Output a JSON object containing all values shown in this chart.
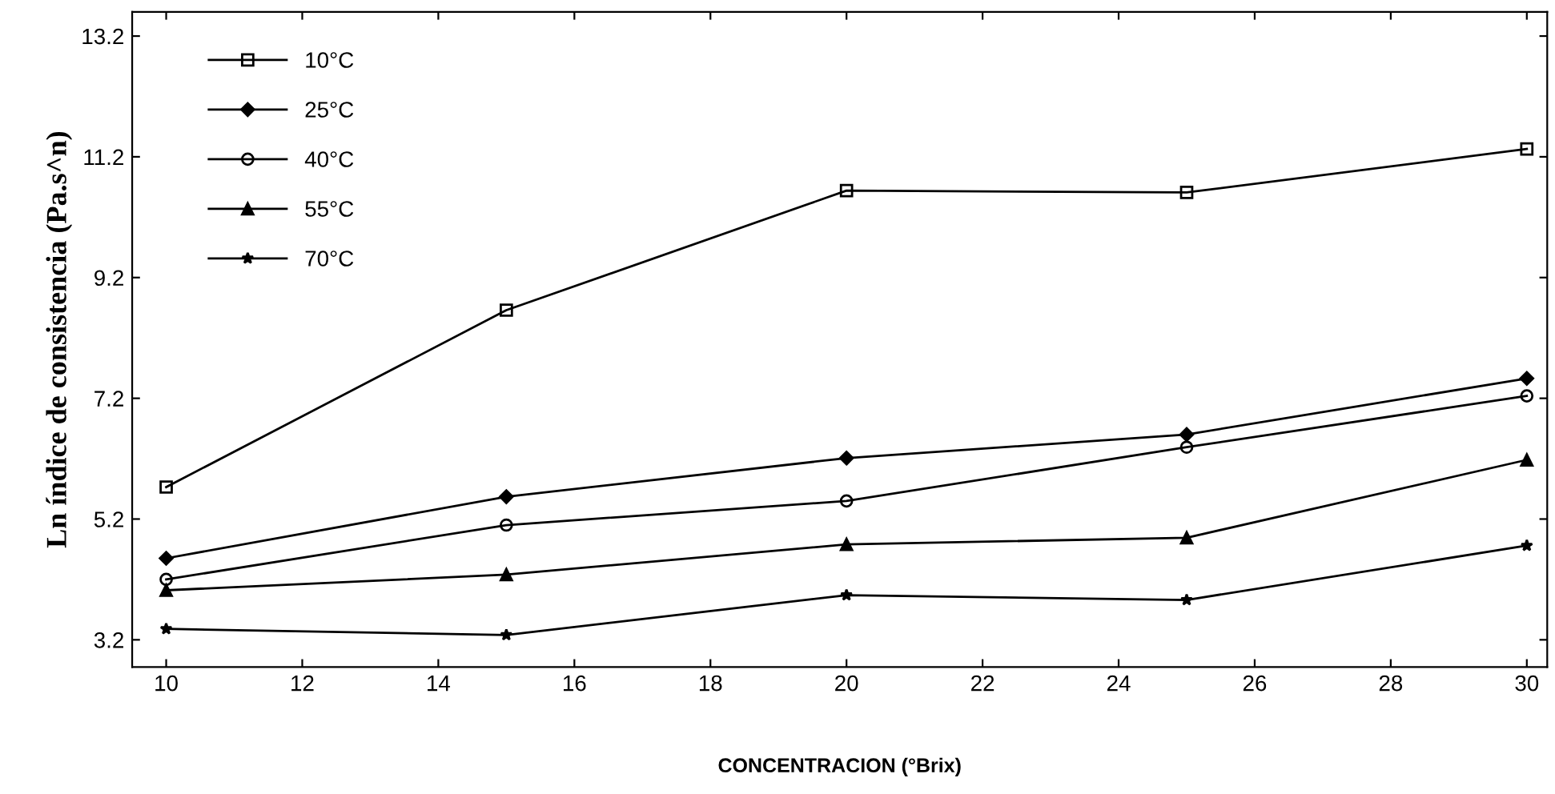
{
  "chart_data": {
    "type": "line",
    "xlabel": "CONCENTRACION (°Brix)",
    "ylabel": "Ln índice de consistencia (Pa.s^n)",
    "x": [
      10,
      15,
      20,
      25,
      30
    ],
    "series": [
      {
        "name": "10°C",
        "color": "#000000",
        "marker": "square",
        "values": [
          5.73,
          8.66,
          10.64,
          10.61,
          11.33
        ]
      },
      {
        "name": "25°C",
        "color": "#000000",
        "marker": "diamond",
        "values": [
          4.55,
          5.57,
          6.21,
          6.6,
          7.53
        ]
      },
      {
        "name": "40°C",
        "color": "#000000",
        "marker": "circle",
        "values": [
          4.2,
          5.1,
          5.5,
          6.39,
          7.24
        ]
      },
      {
        "name": "55°C",
        "color": "#000000",
        "marker": "triangle",
        "values": [
          4.02,
          4.28,
          4.78,
          4.89,
          6.18
        ]
      },
      {
        "name": "70°C",
        "color": "#000000",
        "marker": "star",
        "values": [
          3.38,
          3.28,
          3.94,
          3.86,
          4.76
        ]
      }
    ],
    "xlim": [
      9.5,
      30.3
    ],
    "ylim": [
      2.75,
      13.6
    ],
    "xticks": [
      10,
      12,
      14,
      16,
      18,
      20,
      22,
      24,
      26,
      28,
      30
    ],
    "yticks": [
      3.2,
      5.2,
      7.2,
      9.2,
      11.2,
      13.2
    ],
    "grid": false,
    "legend": "top left",
    "line_style": "solid"
  }
}
